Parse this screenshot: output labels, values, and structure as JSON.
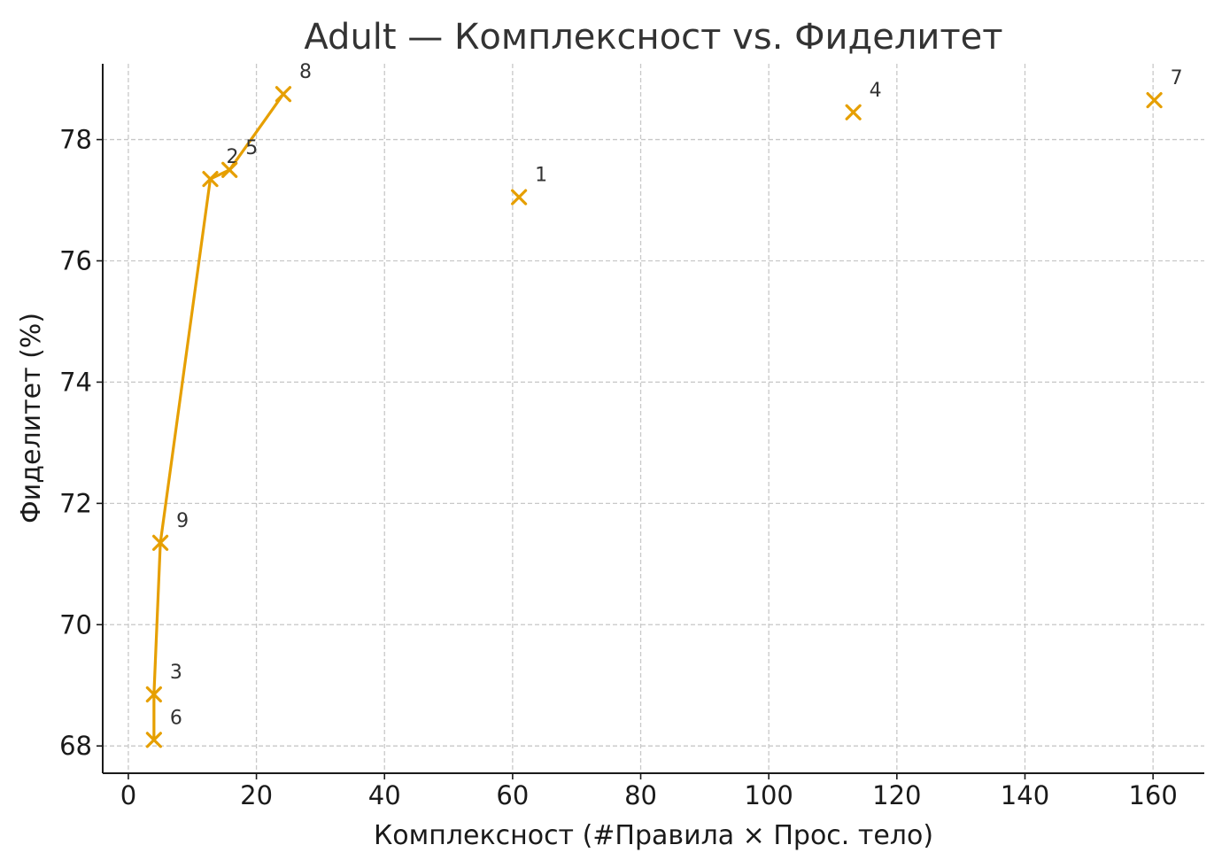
{
  "chart_data": {
    "type": "scatter",
    "title": "Adult — Комплексност vs. Фиделитет",
    "xlabel": "Комплексност (#Правила × Прос. тело)",
    "ylabel": "Фиделитет (%)",
    "xlim": [
      -4,
      168
    ],
    "ylim": [
      67.55,
      79.25
    ],
    "xticks": [
      0,
      20,
      40,
      60,
      80,
      100,
      120,
      140,
      160
    ],
    "yticks": [
      68,
      70,
      72,
      74,
      76,
      78
    ],
    "grid": true,
    "marker": "x",
    "color": "#E69F00",
    "points": [
      {
        "label": "1",
        "x": 61,
        "y": 77.05
      },
      {
        "label": "2",
        "x": 12.8,
        "y": 77.35
      },
      {
        "label": "3",
        "x": 4,
        "y": 68.85
      },
      {
        "label": "4",
        "x": 113.2,
        "y": 78.45
      },
      {
        "label": "5",
        "x": 15.8,
        "y": 77.5
      },
      {
        "label": "6",
        "x": 4,
        "y": 68.1
      },
      {
        "label": "7",
        "x": 160.2,
        "y": 78.65
      },
      {
        "label": "8",
        "x": 24.2,
        "y": 78.75
      },
      {
        "label": "9",
        "x": 5,
        "y": 71.35
      }
    ],
    "frontier": [
      "6",
      "3",
      "9",
      "2",
      "5",
      "8"
    ]
  }
}
